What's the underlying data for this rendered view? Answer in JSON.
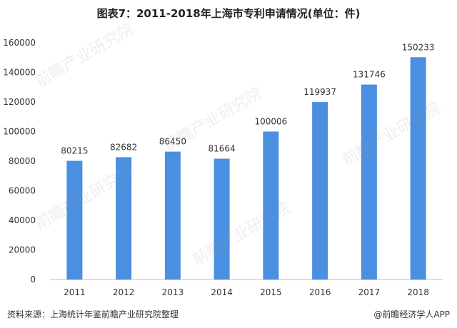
{
  "title": "图表7：2011-2018年上海市专利申请情况(单位：件)",
  "source": "资料来源：上海统计年鉴前瞻产业研究院整理",
  "credit": "@前瞻经济学人APP",
  "watermark": "前瞻产业研究院",
  "colors": {
    "bar": "#4a8fe0",
    "axis": "#bfbfbf"
  },
  "chart_data": {
    "type": "bar",
    "categories": [
      "2011",
      "2012",
      "2013",
      "2014",
      "2015",
      "2016",
      "2017",
      "2018"
    ],
    "values": [
      80215,
      82682,
      86450,
      81664,
      100006,
      119937,
      131746,
      150233
    ],
    "title": "图表7：2011-2018年上海市专利申请情况(单位：件)",
    "xlabel": "",
    "ylabel": "",
    "ylim": [
      0,
      160000
    ],
    "yticks": [
      0,
      20000,
      40000,
      60000,
      80000,
      100000,
      120000,
      140000,
      160000
    ],
    "grid": false,
    "data_labels": true
  }
}
